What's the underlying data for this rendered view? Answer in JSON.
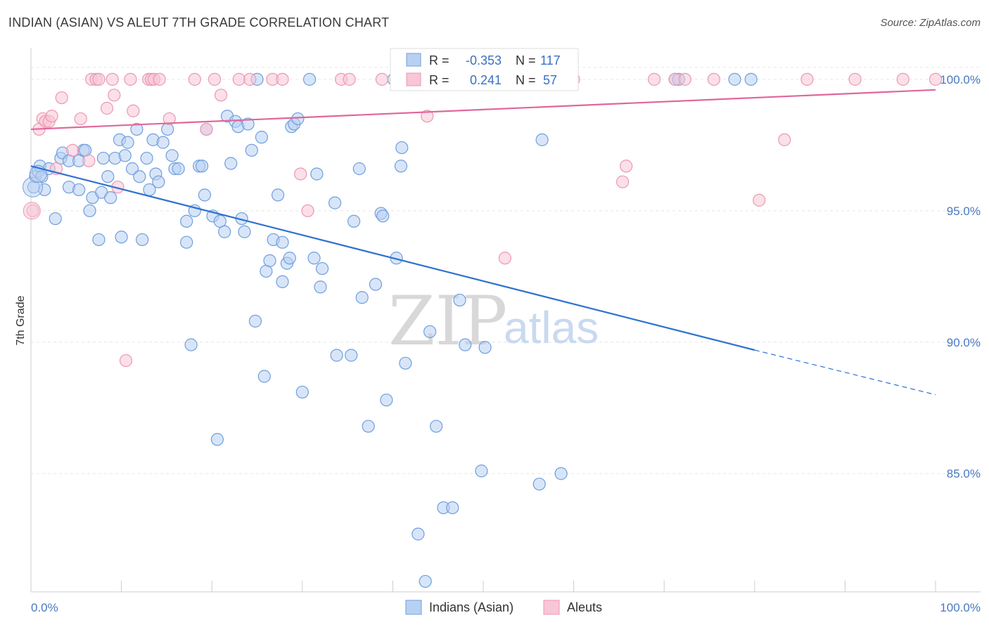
{
  "title": "INDIAN (ASIAN) VS ALEUT 7TH GRADE CORRELATION CHART",
  "source": "Source: ZipAtlas.com",
  "watermark": {
    "zip": "ZIP",
    "atlas": "atlas"
  },
  "colors": {
    "blue_fill": "#b8d0f2",
    "blue_stroke": "#6f9fdc",
    "blue_line": "#2f72d0",
    "pink_fill": "#f8c6d6",
    "pink_stroke": "#ec97b2",
    "pink_line": "#e0679a",
    "grid": "#e6e6e6",
    "tick_text": "#4a78c2"
  },
  "stats": {
    "blue": {
      "r_label": "R =",
      "r_value": "-0.353",
      "n_label": "N =",
      "n_value": "117"
    },
    "pink": {
      "r_label": "R =",
      "r_value": "0.241",
      "n_label": "N =",
      "n_value": "57"
    }
  },
  "chart_data": {
    "type": "scatter",
    "title": "INDIAN (ASIAN) VS ALEUT 7TH GRADE CORRELATION CHART",
    "xlabel": "",
    "ylabel": "7th Grade",
    "xlim": [
      0,
      100
    ],
    "ylim": [
      80.5,
      101.2
    ],
    "x_tick_labels": [
      "0.0%",
      "100.0%"
    ],
    "y_ticks": [
      85,
      90,
      95,
      100
    ],
    "y_tick_labels": [
      "85.0%",
      "90.0%",
      "95.0%",
      "100.0%"
    ],
    "grid": true,
    "legend_position": "bottom-center",
    "series": [
      {
        "name": "Indians (Asian)",
        "color": "#6f9fdc",
        "trend": {
          "x": [
            0,
            80
          ],
          "y": [
            96.7,
            89.7
          ],
          "dashed_to": [
            100,
            88.0
          ]
        },
        "points": [
          [
            0.3,
            95.9
          ],
          [
            0.5,
            96.3
          ],
          [
            0.8,
            96.5
          ],
          [
            1.0,
            96.7
          ],
          [
            1.2,
            96.3
          ],
          [
            1.5,
            95.8
          ],
          [
            2.0,
            96.6
          ],
          [
            2.7,
            94.7
          ],
          [
            3.3,
            97.0
          ],
          [
            3.5,
            97.2
          ],
          [
            4.2,
            96.9
          ],
          [
            4.2,
            95.9
          ],
          [
            5.3,
            96.9
          ],
          [
            5.3,
            95.8
          ],
          [
            5.8,
            97.3
          ],
          [
            6.0,
            97.3
          ],
          [
            6.5,
            95.0
          ],
          [
            6.8,
            95.5
          ],
          [
            7.5,
            93.9
          ],
          [
            7.8,
            95.7
          ],
          [
            8.0,
            97.0
          ],
          [
            8.5,
            96.3
          ],
          [
            8.8,
            95.5
          ],
          [
            9.3,
            97.0
          ],
          [
            9.8,
            97.7
          ],
          [
            10.0,
            94.0
          ],
          [
            10.4,
            97.1
          ],
          [
            10.7,
            97.6
          ],
          [
            11.2,
            96.6
          ],
          [
            11.7,
            98.1
          ],
          [
            12.0,
            96.3
          ],
          [
            12.3,
            93.9
          ],
          [
            12.8,
            97.0
          ],
          [
            13.1,
            95.8
          ],
          [
            13.5,
            97.7
          ],
          [
            13.8,
            96.4
          ],
          [
            14.1,
            96.1
          ],
          [
            14.6,
            97.6
          ],
          [
            15.1,
            98.1
          ],
          [
            15.6,
            97.1
          ],
          [
            15.9,
            96.6
          ],
          [
            16.3,
            96.6
          ],
          [
            17.2,
            94.6
          ],
          [
            17.2,
            93.8
          ],
          [
            17.7,
            89.9
          ],
          [
            18.1,
            95.0
          ],
          [
            18.6,
            96.7
          ],
          [
            18.9,
            96.7
          ],
          [
            19.2,
            95.6
          ],
          [
            19.4,
            98.1
          ],
          [
            20.1,
            94.8
          ],
          [
            20.6,
            86.3
          ],
          [
            20.9,
            94.6
          ],
          [
            21.4,
            94.2
          ],
          [
            21.7,
            98.6
          ],
          [
            22.1,
            96.8
          ],
          [
            22.6,
            98.4
          ],
          [
            22.9,
            98.2
          ],
          [
            23.3,
            94.7
          ],
          [
            23.6,
            94.2
          ],
          [
            24.0,
            98.3
          ],
          [
            24.4,
            97.3
          ],
          [
            24.8,
            90.8
          ],
          [
            25.0,
            100.0
          ],
          [
            25.5,
            97.8
          ],
          [
            25.8,
            88.7
          ],
          [
            26.0,
            92.7
          ],
          [
            26.4,
            93.1
          ],
          [
            26.8,
            93.9
          ],
          [
            27.3,
            95.6
          ],
          [
            27.8,
            92.3
          ],
          [
            27.8,
            93.8
          ],
          [
            28.3,
            93.0
          ],
          [
            28.6,
            93.2
          ],
          [
            28.8,
            98.2
          ],
          [
            29.1,
            98.3
          ],
          [
            29.5,
            98.5
          ],
          [
            30.0,
            88.1
          ],
          [
            30.8,
            100.0
          ],
          [
            31.3,
            93.2
          ],
          [
            31.6,
            96.4
          ],
          [
            32.0,
            92.1
          ],
          [
            32.2,
            92.8
          ],
          [
            33.6,
            95.3
          ],
          [
            33.8,
            89.5
          ],
          [
            35.4,
            89.5
          ],
          [
            35.7,
            94.6
          ],
          [
            36.3,
            96.6
          ],
          [
            36.6,
            91.7
          ],
          [
            37.3,
            86.8
          ],
          [
            38.1,
            92.2
          ],
          [
            38.7,
            94.9
          ],
          [
            38.9,
            94.8
          ],
          [
            39.3,
            87.8
          ],
          [
            40.1,
            100.0
          ],
          [
            40.4,
            93.2
          ],
          [
            40.9,
            96.7
          ],
          [
            41.0,
            97.4
          ],
          [
            41.4,
            89.2
          ],
          [
            42.8,
            82.7
          ],
          [
            43.6,
            80.9
          ],
          [
            44.1,
            90.4
          ],
          [
            44.8,
            86.8
          ],
          [
            45.6,
            83.7
          ],
          [
            46.6,
            83.7
          ],
          [
            47.2,
            100.0
          ],
          [
            47.4,
            91.6
          ],
          [
            48.0,
            89.9
          ],
          [
            49.8,
            85.1
          ],
          [
            50.2,
            89.8
          ],
          [
            56.2,
            84.6
          ],
          [
            56.5,
            97.7
          ],
          [
            58.6,
            85.0
          ],
          [
            71.2,
            100.0
          ],
          [
            71.6,
            100.0
          ],
          [
            77.8,
            100.0
          ],
          [
            79.6,
            100.0
          ]
        ]
      },
      {
        "name": "Aleuts",
        "color": "#ec97b2",
        "trend": {
          "x": [
            0,
            100
          ],
          "y": [
            98.1,
            99.6
          ]
        },
        "points": [
          [
            0.2,
            95.0
          ],
          [
            0.9,
            98.1
          ],
          [
            1.3,
            98.5
          ],
          [
            1.6,
            98.4
          ],
          [
            2.0,
            98.4
          ],
          [
            2.3,
            98.6
          ],
          [
            2.8,
            96.6
          ],
          [
            3.4,
            99.3
          ],
          [
            4.6,
            97.3
          ],
          [
            5.5,
            98.5
          ],
          [
            6.4,
            96.9
          ],
          [
            6.7,
            100.0
          ],
          [
            7.2,
            100.0
          ],
          [
            7.5,
            100.0
          ],
          [
            8.4,
            98.9
          ],
          [
            9.0,
            100.0
          ],
          [
            9.2,
            99.4
          ],
          [
            9.6,
            95.9
          ],
          [
            10.5,
            89.3
          ],
          [
            11.0,
            100.0
          ],
          [
            11.3,
            98.8
          ],
          [
            13.0,
            100.0
          ],
          [
            13.3,
            100.0
          ],
          [
            13.6,
            100.0
          ],
          [
            14.2,
            100.0
          ],
          [
            15.3,
            98.5
          ],
          [
            18.1,
            100.0
          ],
          [
            19.4,
            98.1
          ],
          [
            20.3,
            100.0
          ],
          [
            21.0,
            99.4
          ],
          [
            23.0,
            100.0
          ],
          [
            24.2,
            100.0
          ],
          [
            26.7,
            100.0
          ],
          [
            27.8,
            100.0
          ],
          [
            29.8,
            96.4
          ],
          [
            30.6,
            95.0
          ],
          [
            34.3,
            100.0
          ],
          [
            35.2,
            100.0
          ],
          [
            38.8,
            100.0
          ],
          [
            43.4,
            100.0
          ],
          [
            43.8,
            98.6
          ],
          [
            52.4,
            93.2
          ],
          [
            55.9,
            100.0
          ],
          [
            56.2,
            100.0
          ],
          [
            60.0,
            100.0
          ],
          [
            65.4,
            96.1
          ],
          [
            65.8,
            96.7
          ],
          [
            68.9,
            100.0
          ],
          [
            71.2,
            100.0
          ],
          [
            72.3,
            100.0
          ],
          [
            75.5,
            100.0
          ],
          [
            80.5,
            95.4
          ],
          [
            83.3,
            97.7
          ],
          [
            85.8,
            100.0
          ],
          [
            91.1,
            100.0
          ],
          [
            96.4,
            100.0
          ],
          [
            100.0,
            100.0
          ]
        ]
      }
    ]
  }
}
